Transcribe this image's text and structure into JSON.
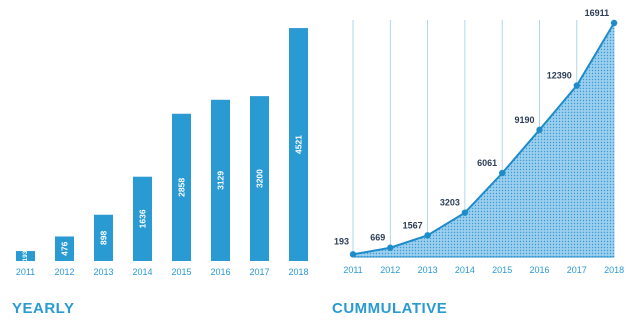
{
  "colors": {
    "bar": "#2a9ad3",
    "area_fill": "#7fc1e8",
    "grid": "#9fcbe6",
    "line": "#1f8cc9",
    "axis_text": "#2a9ad3",
    "point_label": "#2c3e57",
    "title": "#2a9ad3"
  },
  "chart_data": [
    {
      "type": "bar",
      "title": "YEARLY",
      "categories": [
        "2011",
        "2012",
        "2013",
        "2014",
        "2015",
        "2016",
        "2017",
        "2018"
      ],
      "values": [
        193,
        476,
        898,
        1636,
        2858,
        3129,
        3200,
        4521
      ],
      "value_labels": [
        "193",
        "476",
        "898",
        "1636",
        "2858",
        "3129",
        "3200",
        "4521"
      ],
      "xlabel": "",
      "ylabel": "",
      "ylim": [
        0,
        4600
      ],
      "grid": false,
      "labels_inside_bars": true
    },
    {
      "type": "area",
      "title": "CUMMULATIVE",
      "categories": [
        "2011",
        "2012",
        "2013",
        "2014",
        "2015",
        "2016",
        "2017",
        "2018"
      ],
      "values": [
        193,
        669,
        1567,
        3203,
        6061,
        9190,
        12390,
        16911
      ],
      "value_labels": [
        "193",
        "669",
        "1567",
        "3203",
        "6061",
        "9190",
        "12390",
        "16911"
      ],
      "xlabel": "",
      "ylabel": "",
      "ylim": [
        0,
        17000
      ],
      "grid": true,
      "markers": true
    }
  ]
}
